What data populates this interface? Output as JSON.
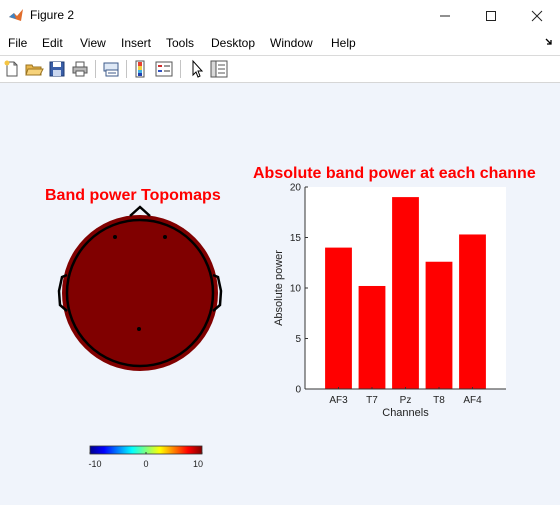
{
  "window": {
    "title": "Figure 2",
    "app_icon": "matlab-logo-icon",
    "controls": [
      "minimize-icon",
      "maximize-icon",
      "close-icon"
    ]
  },
  "menu": {
    "items": [
      "File",
      "Edit",
      "View",
      "Insert",
      "Tools",
      "Desktop",
      "Window",
      "Help"
    ],
    "overflow_icon": "dock-arrow-icon"
  },
  "toolbar": {
    "buttons": [
      "new-figure-icon",
      "open-file-icon",
      "save-icon",
      "print-icon",
      "link-plot-icon",
      "colorbar-icon",
      "legend-icon",
      "edit-plot-icon",
      "property-inspector-icon"
    ]
  },
  "topomap": {
    "title": "Band power Topomaps",
    "fill_color": "#800000",
    "electrode_color": "#000000"
  },
  "colorbar": {
    "tick_labels": [
      "-10",
      "0",
      "10"
    ],
    "range": [
      -10,
      10
    ],
    "colormap": "jet"
  },
  "chart_data": {
    "type": "bar",
    "title": "Absolute band power at each channe",
    "categories": [
      "AF3",
      "T7",
      "Pz",
      "T8",
      "AF4"
    ],
    "values": [
      14.0,
      10.2,
      19.0,
      12.6,
      15.3
    ],
    "xlabel": "Channels",
    "ylabel": "Absolute power",
    "ylim": [
      0,
      20
    ],
    "yticks": [
      0,
      5,
      10,
      15,
      20
    ],
    "bar_color": "#ff0000",
    "grid": false
  }
}
